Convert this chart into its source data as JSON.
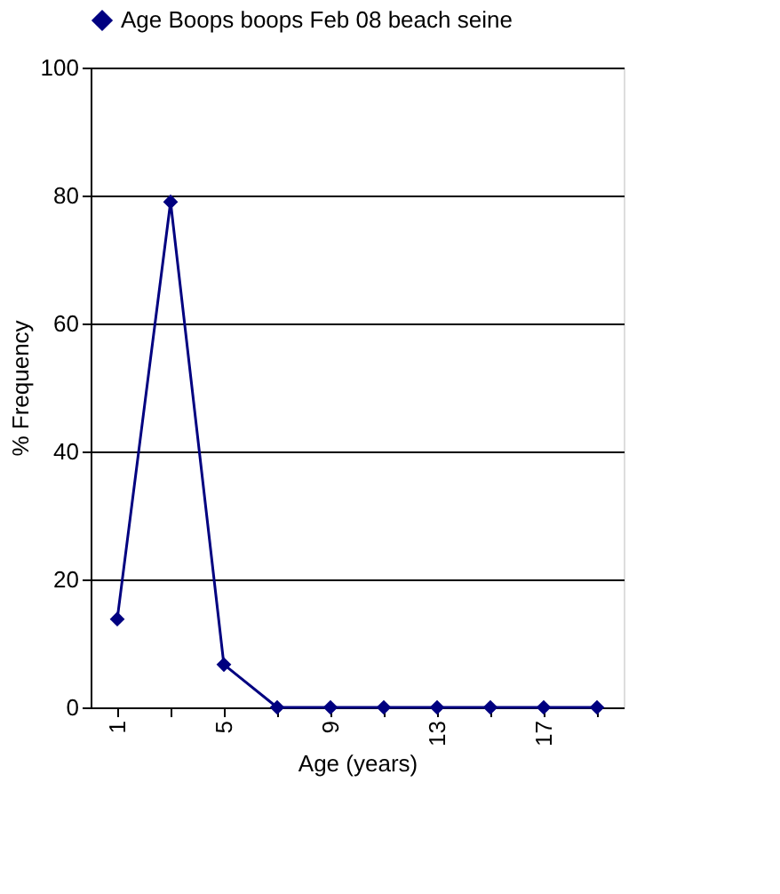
{
  "chart_data": {
    "type": "line",
    "xlabel": "Age (years)",
    "ylabel": "% Frequency",
    "categories": [
      "1",
      null,
      "5",
      null,
      "9",
      null,
      "13",
      null,
      "17",
      null
    ],
    "series": [
      {
        "name": "Age Boops boops Feb 08 beach seine",
        "color": "#000080",
        "values": [
          13.8,
          79,
          6.7,
          0,
          0,
          0,
          0,
          0,
          0,
          0
        ]
      }
    ],
    "ylim": [
      0,
      100
    ],
    "yticks": [
      0,
      20,
      40,
      60,
      80,
      100
    ],
    "grid": "y",
    "legend": "top",
    "marker": "diamond",
    "line_style": "solid"
  }
}
